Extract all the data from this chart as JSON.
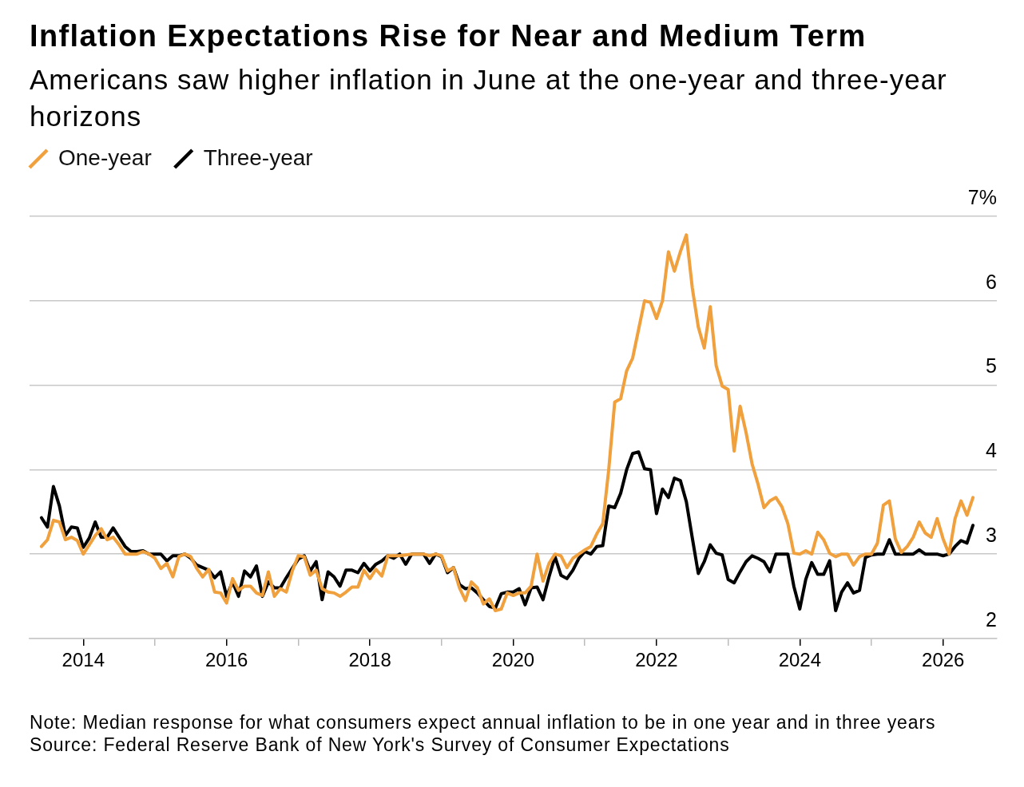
{
  "chart_data": {
    "type": "line",
    "title": "Inflation Expectations Rise for Near and Medium Term",
    "subtitle": "Americans saw higher inflation in June at the one-year and three-year horizons",
    "x": [
      "2013-06",
      "2013-07",
      "2013-08",
      "2013-09",
      "2013-10",
      "2013-11",
      "2013-12",
      "2014-01",
      "2014-02",
      "2014-03",
      "2014-04",
      "2014-05",
      "2014-06",
      "2014-07",
      "2014-08",
      "2014-09",
      "2014-10",
      "2014-11",
      "2014-12",
      "2015-01",
      "2015-02",
      "2015-03",
      "2015-04",
      "2015-05",
      "2015-06",
      "2015-07",
      "2015-08",
      "2015-09",
      "2015-10",
      "2015-11",
      "2015-12",
      "2016-01",
      "2016-02",
      "2016-03",
      "2016-04",
      "2016-05",
      "2016-06",
      "2016-07",
      "2016-08",
      "2016-09",
      "2016-10",
      "2016-11",
      "2016-12",
      "2017-01",
      "2017-02",
      "2017-03",
      "2017-04",
      "2017-05",
      "2017-06",
      "2017-07",
      "2017-08",
      "2017-09",
      "2017-10",
      "2017-11",
      "2017-12",
      "2018-01",
      "2018-02",
      "2018-03",
      "2018-04",
      "2018-05",
      "2018-06",
      "2018-07",
      "2018-08",
      "2018-09",
      "2018-10",
      "2018-11",
      "2018-12",
      "2019-01",
      "2019-02",
      "2019-03",
      "2019-04",
      "2019-05",
      "2019-06",
      "2019-07",
      "2019-08",
      "2019-09",
      "2019-10",
      "2019-11",
      "2019-12",
      "2020-01",
      "2020-02",
      "2020-03",
      "2020-04",
      "2020-05",
      "2020-06",
      "2020-07",
      "2020-08",
      "2020-09",
      "2020-10",
      "2020-11",
      "2020-12",
      "2021-01",
      "2021-02",
      "2021-03",
      "2021-04",
      "2021-05",
      "2021-06",
      "2021-07",
      "2021-08",
      "2021-09",
      "2021-10",
      "2021-11",
      "2021-12",
      "2022-01",
      "2022-02",
      "2022-03",
      "2022-04",
      "2022-05",
      "2022-06",
      "2022-07",
      "2022-08",
      "2022-09",
      "2022-10",
      "2022-11",
      "2022-12",
      "2023-01",
      "2023-02",
      "2023-03",
      "2023-04",
      "2023-05",
      "2023-06",
      "2023-07",
      "2023-08",
      "2023-09",
      "2023-10",
      "2023-11",
      "2023-12",
      "2024-01",
      "2024-02",
      "2024-03",
      "2024-04",
      "2024-05",
      "2024-06",
      "2024-07",
      "2024-08",
      "2024-09",
      "2024-10",
      "2024-11",
      "2024-12",
      "2025-01",
      "2025-02",
      "2025-03",
      "2025-04",
      "2025-05",
      "2025-06",
      "2025-07",
      "2025-08",
      "2025-09",
      "2025-10",
      "2025-11",
      "2025-12",
      "2026-01",
      "2026-02",
      "2026-03",
      "2026-04",
      "2026-05",
      "2026-06"
    ],
    "series": [
      {
        "name": "One-year",
        "color": "#f0a03c",
        "values": [
          3.09,
          3.17,
          3.4,
          3.38,
          3.17,
          3.2,
          3.16,
          3.0,
          3.11,
          3.22,
          3.3,
          3.17,
          3.2,
          3.11,
          3.0,
          3.0,
          3.0,
          3.03,
          3.0,
          2.95,
          2.83,
          2.89,
          2.73,
          2.97,
          3.0,
          2.97,
          2.83,
          2.73,
          2.82,
          2.55,
          2.54,
          2.42,
          2.71,
          2.57,
          2.62,
          2.62,
          2.54,
          2.51,
          2.79,
          2.5,
          2.59,
          2.55,
          2.8,
          2.98,
          2.97,
          2.75,
          2.81,
          2.59,
          2.55,
          2.54,
          2.5,
          2.55,
          2.61,
          2.61,
          2.81,
          2.71,
          2.82,
          2.74,
          2.98,
          2.98,
          2.98,
          2.99,
          3.0,
          3.0,
          3.0,
          2.98,
          3.0,
          2.98,
          2.8,
          2.84,
          2.6,
          2.45,
          2.67,
          2.6,
          2.41,
          2.47,
          2.33,
          2.35,
          2.54,
          2.51,
          2.54,
          2.54,
          2.62,
          3.0,
          2.68,
          2.89,
          3.0,
          2.98,
          2.84,
          2.95,
          3.0,
          3.05,
          3.09,
          3.24,
          3.36,
          4.0,
          4.8,
          4.84,
          5.17,
          5.32,
          5.66,
          6.0,
          5.98,
          5.79,
          6.0,
          6.58,
          6.35,
          6.58,
          6.78,
          6.15,
          5.69,
          5.44,
          5.93,
          5.23,
          4.99,
          4.95,
          4.22,
          4.75,
          4.44,
          4.07,
          3.83,
          3.55,
          3.63,
          3.67,
          3.56,
          3.36,
          3.01,
          3.0,
          3.04,
          3.0,
          3.26,
          3.17,
          3.01,
          2.97,
          3.0,
          3.0,
          2.87,
          2.97,
          3.0,
          3.0,
          3.13,
          3.58,
          3.63,
          3.18,
          3.02,
          3.09,
          3.2,
          3.38,
          3.25,
          3.2,
          3.42,
          3.18,
          3.0,
          3.42,
          3.63,
          3.46,
          3.67
        ]
      },
      {
        "name": "Three-year",
        "color": "#000000",
        "values": [
          3.43,
          3.32,
          3.8,
          3.57,
          3.22,
          3.32,
          3.31,
          3.08,
          3.19,
          3.38,
          3.2,
          3.2,
          3.31,
          3.2,
          3.09,
          3.03,
          3.03,
          3.04,
          3.0,
          3.0,
          3.0,
          2.92,
          2.98,
          2.98,
          3.0,
          2.95,
          2.87,
          2.84,
          2.81,
          2.72,
          2.79,
          2.5,
          2.67,
          2.5,
          2.8,
          2.73,
          2.86,
          2.5,
          2.67,
          2.6,
          2.6,
          2.72,
          2.83,
          2.94,
          2.98,
          2.8,
          2.91,
          2.46,
          2.79,
          2.73,
          2.62,
          2.81,
          2.81,
          2.78,
          2.89,
          2.8,
          2.88,
          2.92,
          2.98,
          2.95,
          3.0,
          2.88,
          3.0,
          3.0,
          3.0,
          2.89,
          3.0,
          2.97,
          2.78,
          2.84,
          2.64,
          2.59,
          2.6,
          2.54,
          2.46,
          2.38,
          2.36,
          2.53,
          2.55,
          2.55,
          2.59,
          2.4,
          2.6,
          2.61,
          2.46,
          2.73,
          2.97,
          2.75,
          2.71,
          2.81,
          2.95,
          3.03,
          3.0,
          3.09,
          3.1,
          3.57,
          3.55,
          3.72,
          4.0,
          4.19,
          4.21,
          4.01,
          4.0,
          3.48,
          3.77,
          3.67,
          3.9,
          3.87,
          3.62,
          3.19,
          2.77,
          2.91,
          3.11,
          3.01,
          2.99,
          2.7,
          2.66,
          2.79,
          2.91,
          2.98,
          2.95,
          2.91,
          2.79,
          3.0,
          3.0,
          3.0,
          2.62,
          2.35,
          2.7,
          2.9,
          2.76,
          2.76,
          2.92,
          2.33,
          2.55,
          2.66,
          2.54,
          2.57,
          2.96,
          2.99,
          3.0,
          3.0,
          3.17,
          3.0,
          3.0,
          3.0,
          3.0,
          3.05,
          3.0,
          3.0,
          3.0,
          2.98,
          3.0,
          3.09,
          3.16,
          3.13,
          3.34
        ]
      }
    ],
    "xlim": [
      "2013-04",
      "2026-10"
    ],
    "xticks": [
      "2014",
      {
        "value": "2015",
        "label": null
      },
      "2016",
      {
        "value": "2017",
        "label": null
      },
      "2018",
      {
        "value": "2019",
        "label": null
      },
      "2020",
      {
        "value": "2021",
        "label": null
      },
      "2022",
      {
        "value": "2023",
        "label": null
      },
      "2024",
      {
        "value": "2025",
        "label": null
      },
      "2026"
    ],
    "ylim": [
      2,
      7
    ],
    "yticks": [
      2,
      3,
      4,
      5,
      6,
      {
        "value": 7,
        "label": "7%"
      }
    ],
    "grid": "y",
    "legend": "top left",
    "marker": "none",
    "line_style": "solid",
    "annotations": [
      "Note: Median response for what consumers expect annual inflation to be in one year and in three years",
      "Source: Federal Reserve Bank of New York's Survey of Consumer Expectations"
    ]
  }
}
